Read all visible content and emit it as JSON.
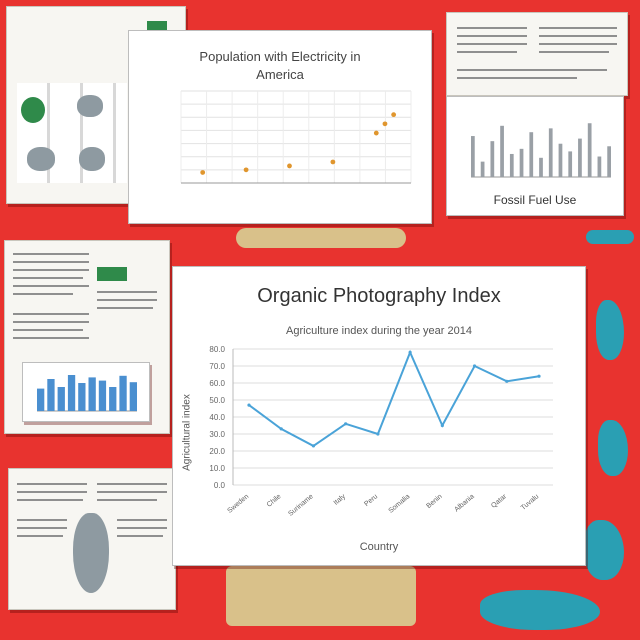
{
  "chart_data": [
    {
      "type": "scatter",
      "title": "Population with Electricity in",
      "subtitle": "America",
      "x": [
        1,
        2,
        3,
        4,
        5,
        5.2,
        5.4
      ],
      "y": [
        8,
        10,
        13,
        16,
        38,
        45,
        52
      ],
      "ylim": [
        0,
        70
      ],
      "grid": true,
      "color": "#e0962e"
    },
    {
      "type": "line",
      "title": "Organic Photography Index",
      "subtitle": "Agriculture index during the year 2014",
      "xlabel": "Country",
      "ylabel": "Agricultural index",
      "yticks": [
        "0.0",
        "10.0",
        "20.0",
        "30.0",
        "40.0",
        "50.0",
        "60.0",
        "70.0",
        "80.0"
      ],
      "categories": [
        "Sweden",
        "Chile",
        "Suriname",
        "Italy",
        "Peru",
        "Somalia",
        "Benin",
        "Albania",
        "Qatar",
        "Tuvalu"
      ],
      "values": [
        47,
        33,
        23,
        36,
        30,
        78,
        35,
        70,
        61,
        64
      ],
      "ylim": [
        0,
        80
      ],
      "grid": true,
      "color": "#4aa3d8"
    },
    {
      "type": "bar",
      "values": [
        32,
        12,
        28,
        40,
        18,
        22,
        35,
        15,
        38,
        26,
        20,
        30,
        42,
        16,
        24
      ],
      "ylim": [
        0,
        50
      ],
      "color": "#9aa0a6"
    },
    {
      "type": "bar",
      "values": [
        28,
        40,
        30,
        45,
        35,
        42,
        38,
        30,
        44,
        36
      ],
      "ylim": [
        0,
        50
      ],
      "color": "#4a8fd0"
    }
  ],
  "bottom_right_caption": "Fossil Fuel Use"
}
